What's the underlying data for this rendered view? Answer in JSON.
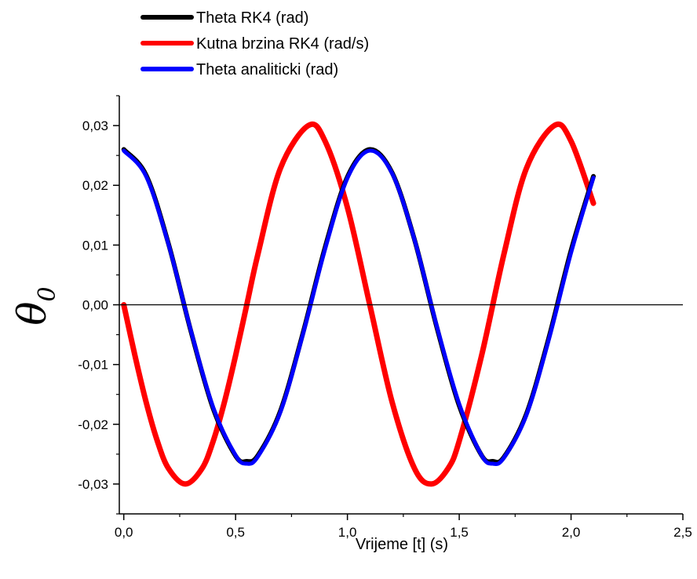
{
  "chart_data": {
    "type": "line",
    "xlabel": "Vrijeme [t] (s)",
    "ylabel": "θ",
    "ylabel_subscript": "0",
    "xlim": [
      -0.02,
      2.5
    ],
    "ylim": [
      -0.035,
      0.035
    ],
    "x_ticks": [
      0.0,
      0.5,
      1.0,
      1.5,
      2.0,
      2.5
    ],
    "x_tick_labels": [
      "0,0",
      "0,5",
      "1,0",
      "1,5",
      "2,0",
      "2,5"
    ],
    "y_ticks": [
      0.03,
      0.02,
      0.01,
      0.0,
      -0.01,
      -0.02,
      -0.03
    ],
    "y_tick_labels": [
      "0,03",
      "0,02",
      "0,01",
      "0,00",
      "-0,01",
      "-0,02",
      "-0,03"
    ],
    "zero_line": true,
    "grid": false,
    "legend_position": "top-left",
    "series": [
      {
        "name": "Theta RK4 (rad)",
        "color": "#000000",
        "x": [
          0.0,
          0.1,
          0.2,
          0.3,
          0.4,
          0.5,
          0.55,
          0.6,
          0.7,
          0.8,
          0.9,
          1.0,
          1.1,
          1.2,
          1.3,
          1.4,
          1.5,
          1.6,
          1.65,
          1.7,
          1.8,
          1.9,
          2.0,
          2.1
        ],
        "y": [
          0.026,
          0.0217,
          0.0102,
          -0.0044,
          -0.0174,
          -0.0253,
          -0.0262,
          -0.0252,
          -0.0178,
          -0.0049,
          0.0096,
          0.0214,
          0.026,
          0.0221,
          0.0109,
          -0.0038,
          -0.0169,
          -0.0252,
          -0.0262,
          -0.0255,
          -0.0183,
          -0.0056,
          0.0091,
          0.0215
        ]
      },
      {
        "name": "Kutna brzina RK4 (rad/s)",
        "color": "#ff0000",
        "x": [
          0.0,
          0.05,
          0.1,
          0.15,
          0.2,
          0.275,
          0.35,
          0.4,
          0.45,
          0.5,
          0.55,
          0.6,
          0.7,
          0.825,
          0.9,
          1.0,
          1.1,
          1.2,
          1.3,
          1.375,
          1.45,
          1.5,
          1.6,
          1.7,
          1.8,
          1.925,
          2.0,
          2.1
        ],
        "y": [
          0.0,
          -0.0085,
          -0.0163,
          -0.0228,
          -0.0274,
          -0.03,
          -0.0274,
          -0.0228,
          -0.0163,
          -0.0085,
          0.0,
          0.0085,
          0.0228,
          0.03,
          0.0274,
          0.0163,
          0.0,
          -0.0163,
          -0.0274,
          -0.03,
          -0.0274,
          -0.0228,
          -0.0085,
          0.0085,
          0.0228,
          0.03,
          0.0274,
          0.017
        ]
      },
      {
        "name": "Theta analiticki (rad)",
        "color": "#0000ff",
        "x": [
          0.0,
          0.1,
          0.2,
          0.3,
          0.4,
          0.5,
          0.55,
          0.6,
          0.7,
          0.8,
          0.9,
          1.0,
          1.1,
          1.2,
          1.3,
          1.4,
          1.5,
          1.6,
          1.65,
          1.7,
          1.8,
          1.9,
          2.0,
          2.1
        ],
        "y": [
          0.0258,
          0.0215,
          0.0101,
          -0.0043,
          -0.0172,
          -0.0252,
          -0.0266,
          -0.0254,
          -0.018,
          -0.0051,
          0.0093,
          0.0212,
          0.0258,
          0.022,
          0.0109,
          -0.0036,
          -0.0166,
          -0.0252,
          -0.0266,
          -0.0256,
          -0.0185,
          -0.0059,
          0.0087,
          0.0213
        ]
      }
    ]
  }
}
